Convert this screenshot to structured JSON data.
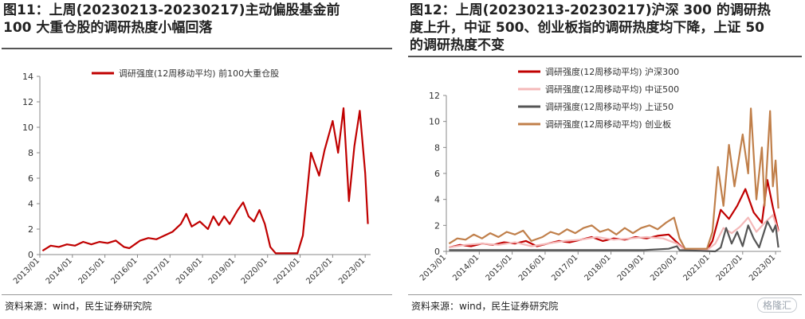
{
  "panels": [
    {
      "title_line1": "图11：上周(20230213-20230217)主动偏股基金前",
      "title_line2": "100 大重仓股的调研热度小幅回落",
      "title_line3": "",
      "source": "资料来源：wind，民生证券研究院"
    },
    {
      "title_line1": "图12：上周(20230213-20230217)沪深 300 的调研热",
      "title_line2": "度上升，中证 500、创业板指的调研热度均下降，上证 50",
      "title_line3": "的调研热度不变",
      "source": "资料来源：wind，民生证券研究院",
      "watermark": "格隆汇"
    }
  ],
  "chart_data": [
    {
      "type": "line",
      "title": "",
      "xlabel": "",
      "ylabel": "",
      "ylim": [
        0,
        14
      ],
      "yticks": [
        "0",
        "2",
        "4",
        "6",
        "8",
        "10",
        "12",
        "14"
      ],
      "xrange": [
        "2013-01",
        "2023-03"
      ],
      "xticks": [
        "2013/01",
        "2014/01",
        "2015/01",
        "2016/01",
        "2017/01",
        "2018/01",
        "2019/01",
        "2020/01",
        "2021/01",
        "2022/01",
        "2023/01"
      ],
      "grid": false,
      "legend": "top-center",
      "series": [
        {
          "name": "调研强度(12周移动平均) 前100大重仓股",
          "color": "#c00000",
          "points": [
            [
              "2013-02",
              0.3
            ],
            [
              "2013-05",
              0.7
            ],
            [
              "2013-08",
              0.6
            ],
            [
              "2013-11",
              0.8
            ],
            [
              "2014-02",
              0.7
            ],
            [
              "2014-05",
              1.0
            ],
            [
              "2014-08",
              0.8
            ],
            [
              "2014-11",
              1.0
            ],
            [
              "2015-02",
              0.9
            ],
            [
              "2015-05",
              1.1
            ],
            [
              "2015-08",
              0.6
            ],
            [
              "2015-10",
              0.5
            ],
            [
              "2015-12",
              0.8
            ],
            [
              "2016-02",
              1.1
            ],
            [
              "2016-05",
              1.3
            ],
            [
              "2016-08",
              1.2
            ],
            [
              "2016-11",
              1.5
            ],
            [
              "2017-02",
              1.8
            ],
            [
              "2017-05",
              2.4
            ],
            [
              "2017-07",
              3.2
            ],
            [
              "2017-09",
              2.2
            ],
            [
              "2017-12",
              2.6
            ],
            [
              "2018-03",
              2.0
            ],
            [
              "2018-05",
              3.0
            ],
            [
              "2018-07",
              2.3
            ],
            [
              "2018-09",
              3.0
            ],
            [
              "2018-11",
              2.4
            ],
            [
              "2019-02",
              3.5
            ],
            [
              "2019-04",
              4.1
            ],
            [
              "2019-06",
              3.0
            ],
            [
              "2019-08",
              2.6
            ],
            [
              "2019-10",
              3.5
            ],
            [
              "2019-12",
              2.4
            ],
            [
              "2020-02",
              0.6
            ],
            [
              "2020-04",
              0.1
            ],
            [
              "2020-08",
              0.1
            ],
            [
              "2020-12",
              0.1
            ],
            [
              "2021-02",
              1.5
            ],
            [
              "2021-05",
              8.0
            ],
            [
              "2021-08",
              6.2
            ],
            [
              "2021-10",
              8.2
            ],
            [
              "2022-01",
              10.5
            ],
            [
              "2022-03",
              8.0
            ],
            [
              "2022-05",
              11.5
            ],
            [
              "2022-07",
              4.2
            ],
            [
              "2022-09",
              8.5
            ],
            [
              "2022-11",
              11.3
            ],
            [
              "2023-01",
              6.4
            ],
            [
              "2023-02",
              2.4
            ]
          ]
        }
      ]
    },
    {
      "type": "line",
      "title": "",
      "xlabel": "",
      "ylabel": "",
      "ylim": [
        0,
        12
      ],
      "yticks": [
        "0",
        "2",
        "4",
        "6",
        "8",
        "10",
        "12"
      ],
      "xrange": [
        "2013-01",
        "2023-03"
      ],
      "xticks": [
        "2013/01",
        "2014/01",
        "2015/01",
        "2016/01",
        "2017/01",
        "2018/01",
        "2019/01",
        "2020/01",
        "2021/01",
        "2022/01",
        "2023/01"
      ],
      "grid": false,
      "legend": "top-center",
      "series": [
        {
          "name": "调研强度(12周移动平均) 沪深300",
          "color": "#c00000",
          "points": [
            [
              "2013-02",
              0.3
            ],
            [
              "2013-06",
              0.5
            ],
            [
              "2013-10",
              0.4
            ],
            [
              "2014-02",
              0.6
            ],
            [
              "2014-06",
              0.5
            ],
            [
              "2014-10",
              0.7
            ],
            [
              "2015-02",
              0.6
            ],
            [
              "2015-06",
              0.8
            ],
            [
              "2015-10",
              0.4
            ],
            [
              "2016-02",
              0.6
            ],
            [
              "2016-06",
              0.8
            ],
            [
              "2016-10",
              0.7
            ],
            [
              "2017-02",
              0.9
            ],
            [
              "2017-06",
              1.1
            ],
            [
              "2017-10",
              0.8
            ],
            [
              "2018-02",
              1.0
            ],
            [
              "2018-06",
              0.9
            ],
            [
              "2018-10",
              1.1
            ],
            [
              "2019-02",
              1.0
            ],
            [
              "2019-06",
              1.2
            ],
            [
              "2019-10",
              1.3
            ],
            [
              "2020-01",
              0.7
            ],
            [
              "2020-04",
              0.1
            ],
            [
              "2020-12",
              0.1
            ],
            [
              "2021-02",
              0.8
            ],
            [
              "2021-05",
              3.2
            ],
            [
              "2021-08",
              2.5
            ],
            [
              "2021-11",
              3.5
            ],
            [
              "2022-02",
              4.8
            ],
            [
              "2022-05",
              3.0
            ],
            [
              "2022-08",
              2.2
            ],
            [
              "2022-10",
              5.5
            ],
            [
              "2022-12",
              3.4
            ],
            [
              "2023-02",
              1.6
            ]
          ]
        },
        {
          "name": "调研强度(12周移动平均) 中证500",
          "color": "#f4b9b9",
          "points": [
            [
              "2013-02",
              0.3
            ],
            [
              "2013-08",
              0.5
            ],
            [
              "2014-02",
              0.6
            ],
            [
              "2014-08",
              0.5
            ],
            [
              "2015-02",
              0.7
            ],
            [
              "2015-08",
              0.4
            ],
            [
              "2016-02",
              0.6
            ],
            [
              "2016-08",
              0.8
            ],
            [
              "2017-02",
              0.9
            ],
            [
              "2017-08",
              1.1
            ],
            [
              "2018-02",
              0.9
            ],
            [
              "2018-08",
              1.0
            ],
            [
              "2019-02",
              1.1
            ],
            [
              "2019-08",
              1.0
            ],
            [
              "2020-01",
              0.6
            ],
            [
              "2020-04",
              0.1
            ],
            [
              "2020-12",
              0.1
            ],
            [
              "2021-03",
              0.6
            ],
            [
              "2021-06",
              1.8
            ],
            [
              "2021-09",
              1.4
            ],
            [
              "2021-12",
              1.9
            ],
            [
              "2022-03",
              2.6
            ],
            [
              "2022-06",
              1.5
            ],
            [
              "2022-09",
              2.2
            ],
            [
              "2022-12",
              2.8
            ],
            [
              "2023-02",
              1.5
            ]
          ]
        },
        {
          "name": "调研强度(12周移动平均) 上证50",
          "color": "#555555",
          "points": [
            [
              "2013-02",
              0.1
            ],
            [
              "2015-01",
              0.1
            ],
            [
              "2017-01",
              0.1
            ],
            [
              "2019-01",
              0.1
            ],
            [
              "2019-10",
              0.2
            ],
            [
              "2020-01",
              0.4
            ],
            [
              "2020-02",
              0.1
            ],
            [
              "2021-03",
              0.0
            ],
            [
              "2021-05",
              0.3
            ],
            [
              "2021-07",
              1.8
            ],
            [
              "2021-09",
              0.6
            ],
            [
              "2021-11",
              1.5
            ],
            [
              "2022-01",
              0.4
            ],
            [
              "2022-03",
              2.0
            ],
            [
              "2022-05",
              1.0
            ],
            [
              "2022-07",
              0.3
            ],
            [
              "2022-10",
              2.3
            ],
            [
              "2022-12",
              1.5
            ],
            [
              "2023-01",
              2.0
            ],
            [
              "2023-02",
              0.3
            ]
          ]
        },
        {
          "name": "调研强度(12周移动平均) 创业板",
          "color": "#c07f4a",
          "points": [
            [
              "2013-02",
              0.6
            ],
            [
              "2013-05",
              1.0
            ],
            [
              "2013-08",
              0.9
            ],
            [
              "2013-11",
              1.3
            ],
            [
              "2014-02",
              1.0
            ],
            [
              "2014-05",
              1.4
            ],
            [
              "2014-08",
              1.1
            ],
            [
              "2014-11",
              1.5
            ],
            [
              "2015-02",
              1.3
            ],
            [
              "2015-05",
              1.6
            ],
            [
              "2015-08",
              0.8
            ],
            [
              "2015-12",
              1.1
            ],
            [
              "2016-03",
              1.5
            ],
            [
              "2016-06",
              1.3
            ],
            [
              "2016-09",
              1.7
            ],
            [
              "2016-12",
              1.4
            ],
            [
              "2017-03",
              1.8
            ],
            [
              "2017-06",
              2.0
            ],
            [
              "2017-09",
              1.5
            ],
            [
              "2017-12",
              1.7
            ],
            [
              "2018-03",
              1.3
            ],
            [
              "2018-06",
              1.8
            ],
            [
              "2018-09",
              1.4
            ],
            [
              "2018-12",
              1.8
            ],
            [
              "2019-03",
              2.0
            ],
            [
              "2019-06",
              1.7
            ],
            [
              "2019-09",
              2.2
            ],
            [
              "2019-12",
              2.6
            ],
            [
              "2020-02",
              1.0
            ],
            [
              "2020-04",
              0.2
            ],
            [
              "2020-12",
              0.2
            ],
            [
              "2021-02",
              1.5
            ],
            [
              "2021-04",
              6.5
            ],
            [
              "2021-06",
              3.5
            ],
            [
              "2021-08",
              8.2
            ],
            [
              "2021-10",
              5.0
            ],
            [
              "2022-01",
              9.0
            ],
            [
              "2022-03",
              6.0
            ],
            [
              "2022-04",
              11.0
            ],
            [
              "2022-06",
              4.0
            ],
            [
              "2022-08",
              8.0
            ],
            [
              "2022-09",
              3.5
            ],
            [
              "2022-11",
              10.8
            ],
            [
              "2022-12",
              5.0
            ],
            [
              "2023-01",
              7.0
            ],
            [
              "2023-02",
              3.3
            ]
          ]
        }
      ]
    }
  ]
}
